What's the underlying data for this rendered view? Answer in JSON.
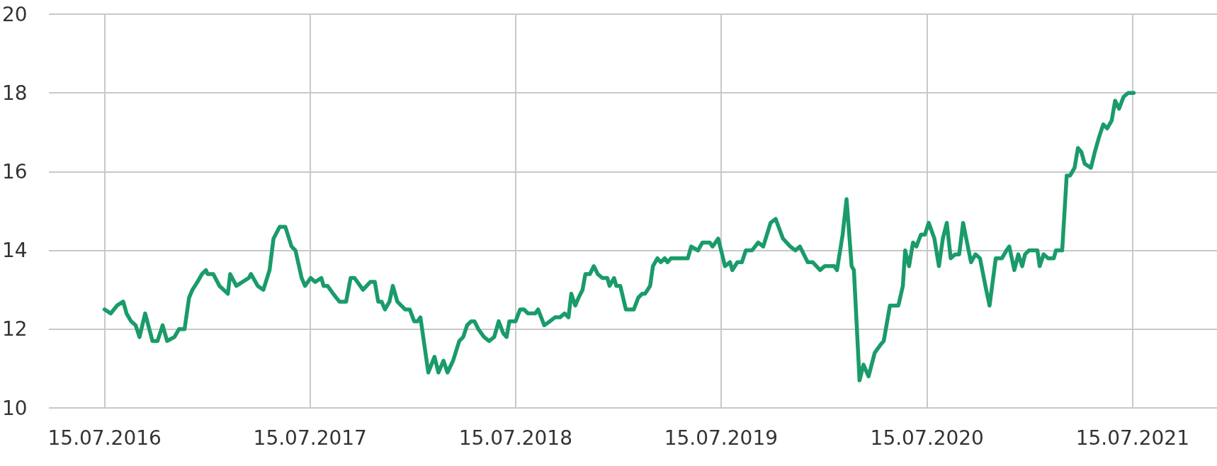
{
  "chart_data": {
    "type": "line",
    "color": "#1a9b6a",
    "grid": true,
    "marker": "none",
    "line_style": "solid",
    "xlim": [
      "2016-04-07",
      "2021-12-12"
    ],
    "xticks": [
      {
        "value": "2016-07-15",
        "label": "15.07.2016"
      },
      {
        "value": "2017-07-15",
        "label": "15.07.2017"
      },
      {
        "value": "2018-07-15",
        "label": "15.07.2018"
      },
      {
        "value": "2019-07-15",
        "label": "15.07.2019"
      },
      {
        "value": "2020-07-15",
        "label": "15.07.2020"
      },
      {
        "value": "2021-07-15",
        "label": "15.07.2021"
      }
    ],
    "ylim": [
      10,
      20
    ],
    "yticks": [
      10,
      12,
      14,
      16,
      18,
      20
    ],
    "x": [
      "2016-07-15",
      "2016-07-26",
      "2016-08-06",
      "2016-08-17",
      "2016-08-23",
      "2016-08-31",
      "2016-09-08",
      "2016-09-15",
      "2016-09-25",
      "2016-10-08",
      "2016-10-17",
      "2016-10-26",
      "2016-11-03",
      "2016-11-16",
      "2016-11-24",
      "2016-12-04",
      "2016-12-12",
      "2016-12-18",
      "2016-12-27",
      "2017-01-04",
      "2017-01-11",
      "2017-01-14",
      "2017-01-24",
      "2017-02-04",
      "2017-02-19",
      "2017-02-23",
      "2017-03-06",
      "2017-03-28",
      "2017-04-01",
      "2017-04-13",
      "2017-04-23",
      "2017-05-04",
      "2017-05-11",
      "2017-05-22",
      "2017-06-01",
      "2017-06-12",
      "2017-06-19",
      "2017-06-30",
      "2017-07-06",
      "2017-07-16",
      "2017-07-24",
      "2017-08-04",
      "2017-08-08",
      "2017-08-15",
      "2017-08-25",
      "2017-09-05",
      "2017-09-17",
      "2017-09-25",
      "2017-10-02",
      "2017-10-12",
      "2017-10-17",
      "2017-10-30",
      "2017-11-07",
      "2017-11-13",
      "2017-11-19",
      "2017-11-25",
      "2017-12-03",
      "2017-12-09",
      "2017-12-17",
      "2017-12-24",
      "2017-12-31",
      "2018-01-08",
      "2018-01-16",
      "2018-01-22",
      "2018-01-27",
      "2018-02-03",
      "2018-02-10",
      "2018-02-21",
      "2018-02-28",
      "2018-03-09",
      "2018-03-16",
      "2018-03-26",
      "2018-04-06",
      "2018-04-13",
      "2018-04-20",
      "2018-04-27",
      "2018-05-03",
      "2018-05-10",
      "2018-05-20",
      "2018-05-29",
      "2018-06-07",
      "2018-06-15",
      "2018-06-23",
      "2018-06-29",
      "2018-07-04",
      "2018-07-15",
      "2018-07-23",
      "2018-07-30",
      "2018-08-06",
      "2018-08-19",
      "2018-08-24",
      "2018-09-04",
      "2018-09-14",
      "2018-09-23",
      "2018-10-02",
      "2018-10-10",
      "2018-10-17",
      "2018-10-22",
      "2018-10-29",
      "2018-11-04",
      "2018-11-11",
      "2018-11-16",
      "2018-11-24",
      "2018-12-01",
      "2018-12-08",
      "2018-12-16",
      "2018-12-25",
      "2018-12-29",
      "2019-01-06",
      "2019-01-10",
      "2019-01-17",
      "2019-01-27",
      "2019-02-03",
      "2019-02-10",
      "2019-02-18",
      "2019-02-25",
      "2019-03-02",
      "2019-03-11",
      "2019-03-16",
      "2019-03-24",
      "2019-03-30",
      "2019-04-06",
      "2019-04-11",
      "2019-04-17",
      "2019-04-26",
      "2019-05-07",
      "2019-05-17",
      "2019-05-23",
      "2019-06-04",
      "2019-06-12",
      "2019-06-25",
      "2019-06-30",
      "2019-07-10",
      "2019-07-22",
      "2019-07-31",
      "2019-08-04",
      "2019-08-13",
      "2019-08-21",
      "2019-08-28",
      "2019-09-08",
      "2019-09-19",
      "2019-09-28",
      "2019-10-11",
      "2019-10-20",
      "2019-11-02",
      "2019-11-15",
      "2019-11-24",
      "2019-12-02",
      "2019-12-16",
      "2019-12-25",
      "2020-01-07",
      "2020-01-15",
      "2020-01-23",
      "2020-02-01",
      "2020-02-06",
      "2020-02-16",
      "2020-02-23",
      "2020-03-03",
      "2020-03-07",
      "2020-03-17",
      "2020-03-24",
      "2020-04-02",
      "2020-04-13",
      "2020-04-23",
      "2020-04-29",
      "2020-05-10",
      "2020-05-25",
      "2020-06-02",
      "2020-06-06",
      "2020-06-13",
      "2020-06-20",
      "2020-06-26",
      "2020-07-04",
      "2020-07-11",
      "2020-07-18",
      "2020-07-28",
      "2020-08-05",
      "2020-08-12",
      "2020-08-19",
      "2020-08-26",
      "2020-09-03",
      "2020-09-10",
      "2020-09-17",
      "2020-10-01",
      "2020-10-09",
      "2020-10-17",
      "2020-10-28",
      "2020-11-03",
      "2020-11-14",
      "2020-11-25",
      "2020-12-03",
      "2020-12-08",
      "2020-12-17",
      "2020-12-24",
      "2020-12-31",
      "2021-01-05",
      "2021-01-12",
      "2021-01-18",
      "2021-01-27",
      "2021-01-31",
      "2021-02-07",
      "2021-02-15",
      "2021-02-25",
      "2021-03-01",
      "2021-03-12",
      "2021-03-20",
      "2021-03-26",
      "2021-04-03",
      "2021-04-09",
      "2021-04-15",
      "2021-04-21",
      "2021-05-02",
      "2021-05-09",
      "2021-05-17",
      "2021-05-24",
      "2021-05-31",
      "2021-06-08",
      "2021-06-14",
      "2021-06-21",
      "2021-06-29",
      "2021-07-07",
      "2021-07-17"
    ],
    "values": [
      12.5,
      12.4,
      12.6,
      12.7,
      12.4,
      12.2,
      12.1,
      11.8,
      12.4,
      11.7,
      11.7,
      12.1,
      11.7,
      11.8,
      12.0,
      12.0,
      12.8,
      13.0,
      13.2,
      13.4,
      13.5,
      13.4,
      13.4,
      13.1,
      12.9,
      13.4,
      13.1,
      13.3,
      13.4,
      13.1,
      13.0,
      13.5,
      14.3,
      14.6,
      14.6,
      14.1,
      14.0,
      13.3,
      13.1,
      13.3,
      13.2,
      13.3,
      13.1,
      13.1,
      12.9,
      12.7,
      12.7,
      13.3,
      13.3,
      13.1,
      13.0,
      13.2,
      13.2,
      12.7,
      12.7,
      12.5,
      12.7,
      13.1,
      12.7,
      12.6,
      12.5,
      12.5,
      12.2,
      12.2,
      12.3,
      11.6,
      10.9,
      11.3,
      10.9,
      11.2,
      10.9,
      11.2,
      11.7,
      11.8,
      12.1,
      12.2,
      12.2,
      12.0,
      11.8,
      11.7,
      11.8,
      12.2,
      11.9,
      11.8,
      12.2,
      12.2,
      12.5,
      12.5,
      12.4,
      12.4,
      12.5,
      12.1,
      12.2,
      12.3,
      12.3,
      12.4,
      12.3,
      12.9,
      12.6,
      12.8,
      13.0,
      13.4,
      13.4,
      13.6,
      13.4,
      13.3,
      13.3,
      13.1,
      13.3,
      13.1,
      13.1,
      12.5,
      12.5,
      12.5,
      12.8,
      12.9,
      12.9,
      13.1,
      13.6,
      13.8,
      13.7,
      13.8,
      13.7,
      13.8,
      13.8,
      13.8,
      13.8,
      14.1,
      14.0,
      14.2,
      14.2,
      14.1,
      14.3,
      13.6,
      13.7,
      13.5,
      13.7,
      13.7,
      14.0,
      14.0,
      14.2,
      14.1,
      14.7,
      14.8,
      14.3,
      14.1,
      14.0,
      14.1,
      13.7,
      13.7,
      13.5,
      13.6,
      13.6,
      13.6,
      13.5,
      14.4,
      15.3,
      13.6,
      13.5,
      10.7,
      11.1,
      10.8,
      11.4,
      11.6,
      11.7,
      12.6,
      12.6,
      13.1,
      14.0,
      13.6,
      14.2,
      14.1,
      14.4,
      14.4,
      14.7,
      14.3,
      13.6,
      14.3,
      14.7,
      13.8,
      13.9,
      13.9,
      14.7,
      13.7,
      13.9,
      13.8,
      13.0,
      12.6,
      13.8,
      13.8,
      14.0,
      14.1,
      13.5,
      13.9,
      13.6,
      13.9,
      14.0,
      14.0,
      14.0,
      13.6,
      13.9,
      13.8,
      13.8,
      14.0,
      14.0,
      15.9,
      15.9,
      16.1,
      16.6,
      16.5,
      16.2,
      16.1,
      16.5,
      16.9,
      17.2,
      17.1,
      17.3,
      17.8,
      17.6,
      17.9,
      18.0,
      18.0
    ]
  }
}
